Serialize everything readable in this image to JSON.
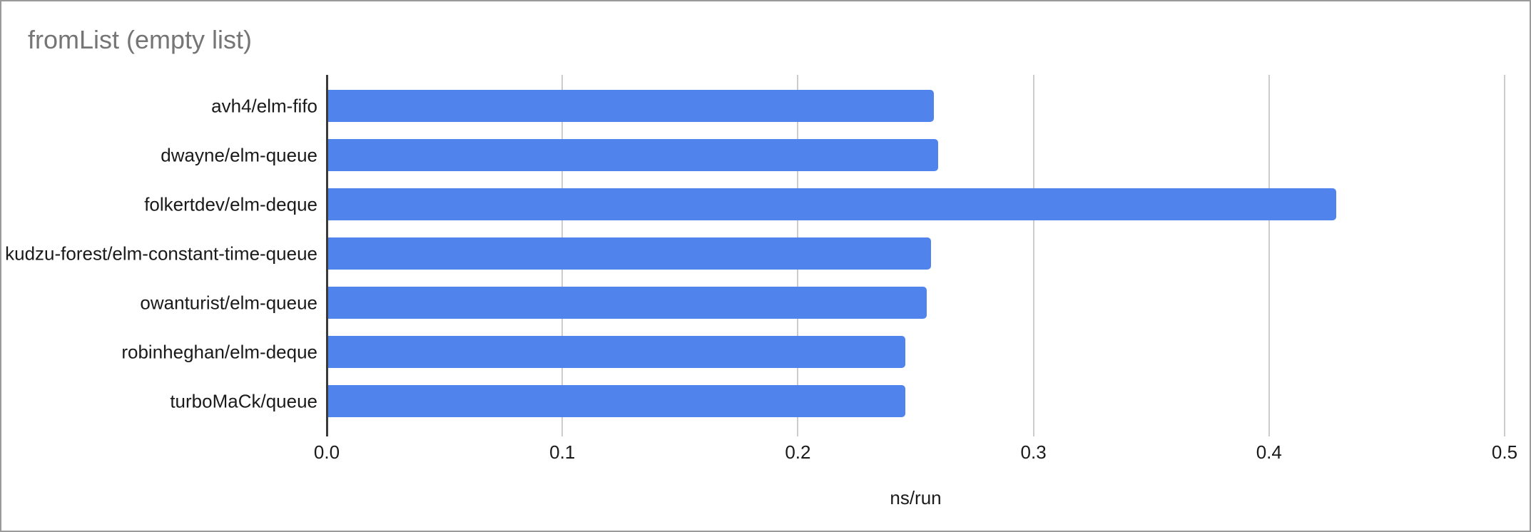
{
  "window": {
    "background": "#ffffff",
    "border_color": "#9a9a9a"
  },
  "chart_data": {
    "type": "bar",
    "orientation": "horizontal",
    "title": "fromList (empty list)",
    "categories": [
      "avh4/elm-fifo",
      "dwayne/elm-queue",
      "folkertdev/elm-deque",
      "kudzu-forest/elm-constant-time-queue",
      "owanturist/elm-queue",
      "robinheghan/elm-deque",
      "turboMaCk/queue"
    ],
    "values": [
      0.257,
      0.259,
      0.428,
      0.256,
      0.254,
      0.245,
      0.245
    ],
    "xlabel": "ns/run",
    "ylabel": "",
    "xlim": [
      0,
      0.5
    ],
    "xticks": [
      0,
      0.1,
      0.2,
      0.3,
      0.4,
      0.5
    ],
    "xtick_labels": [
      "0.0",
      "0.1",
      "0.2",
      "0.3",
      "0.4",
      "0.5"
    ],
    "grid": "vertical-gridlines-on",
    "legend": "none",
    "colors": {
      "bar": "#5083ec",
      "title": "#757575",
      "axis_line": "#3a3a3a",
      "gridline": "#cccccc",
      "label_text": "#1a1a1a"
    }
  }
}
